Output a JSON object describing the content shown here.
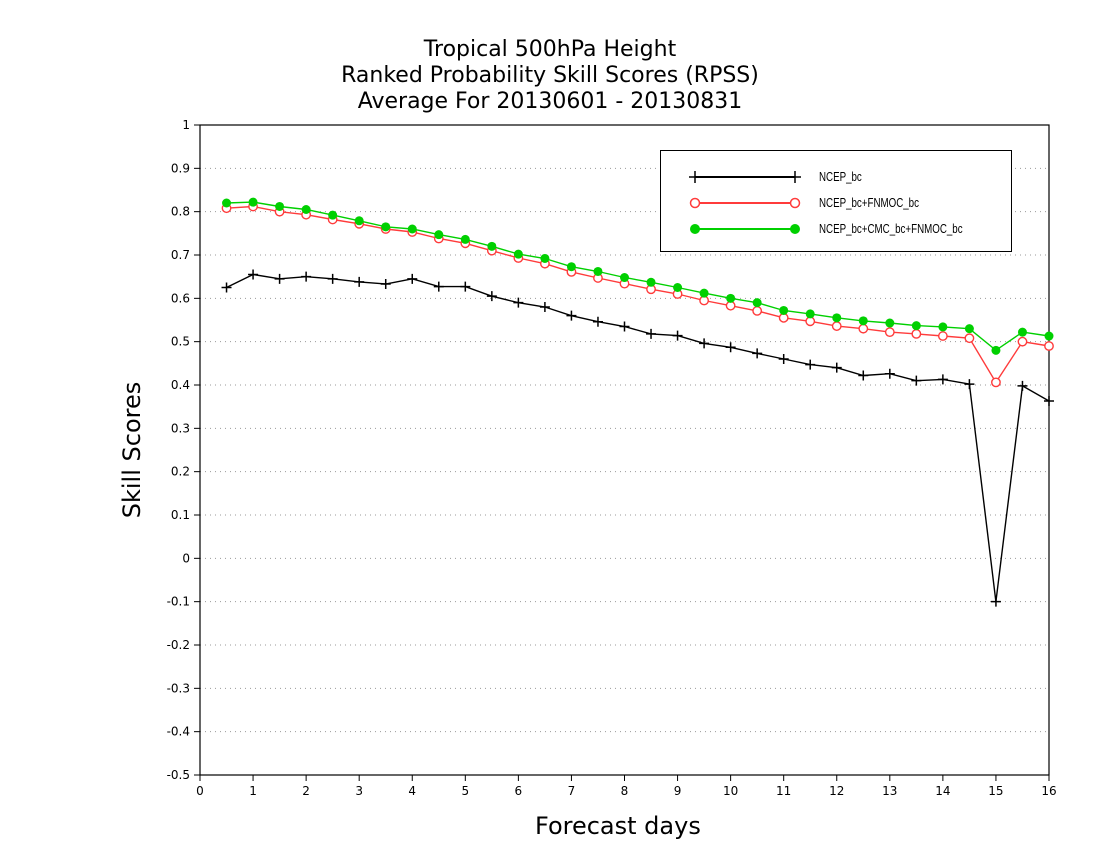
{
  "title": {
    "line1": "Tropical 500hPa Height",
    "line2": "Ranked Probability Skill Scores (RPSS)",
    "line3": "Average For 20130601 - 20130831"
  },
  "chart_data": {
    "type": "line",
    "xlabel": "Forecast days",
    "ylabel": "Skill Scores",
    "xlim": [
      0,
      16
    ],
    "ylim": [
      -0.5,
      1
    ],
    "x_ticks": [
      "0",
      "1",
      "2",
      "3",
      "4",
      "5",
      "6",
      "7",
      "8",
      "9",
      "10",
      "11",
      "12",
      "13",
      "14",
      "15",
      "16"
    ],
    "y_ticks": [
      "-0.5",
      "-0.4",
      "-0.3",
      "-0.2",
      "-0.1",
      "0",
      "0.1",
      "0.2",
      "0.3",
      "0.4",
      "0.5",
      "0.6",
      "0.7",
      "0.8",
      "0.9",
      "1"
    ],
    "grid": true,
    "legend_position": "top-right",
    "x": [
      0.5,
      1,
      1.5,
      2,
      2.5,
      3,
      3.5,
      4,
      4.5,
      5,
      5.5,
      6,
      6.5,
      7,
      7.5,
      8,
      8.5,
      9,
      9.5,
      10,
      10.5,
      11,
      11.5,
      12,
      12.5,
      13,
      13.5,
      14,
      14.5,
      15,
      15.5,
      16
    ],
    "series": [
      {
        "name": "NCEP_bc",
        "color": "#000000",
        "marker": "plus",
        "values": [
          0.625,
          0.655,
          0.645,
          0.65,
          0.645,
          0.638,
          0.633,
          0.645,
          0.627,
          0.627,
          0.605,
          0.59,
          0.58,
          0.56,
          0.546,
          0.535,
          0.518,
          0.514,
          0.496,
          0.487,
          0.473,
          0.46,
          0.447,
          0.44,
          0.422,
          0.426,
          0.41,
          0.413,
          0.402,
          -0.1,
          0.398,
          0.363
        ]
      },
      {
        "name": "NCEP_bc+FNMOC_bc",
        "color": "#ff3b3b",
        "marker": "open-circle",
        "values": [
          0.808,
          0.812,
          0.8,
          0.793,
          0.782,
          0.772,
          0.76,
          0.753,
          0.738,
          0.727,
          0.71,
          0.693,
          0.68,
          0.661,
          0.647,
          0.634,
          0.621,
          0.61,
          0.595,
          0.583,
          0.571,
          0.555,
          0.547,
          0.536,
          0.53,
          0.522,
          0.518,
          0.513,
          0.508,
          0.406,
          0.5,
          0.49
        ]
      },
      {
        "name": "NCEP_bc+CMC_bc+FNMOC_bc",
        "color": "#00d000",
        "marker": "filled-circle",
        "values": [
          0.82,
          0.822,
          0.812,
          0.805,
          0.792,
          0.779,
          0.765,
          0.76,
          0.747,
          0.736,
          0.72,
          0.702,
          0.692,
          0.673,
          0.662,
          0.648,
          0.637,
          0.625,
          0.612,
          0.6,
          0.59,
          0.572,
          0.564,
          0.555,
          0.548,
          0.543,
          0.537,
          0.534,
          0.53,
          0.48,
          0.522,
          0.513
        ]
      }
    ]
  }
}
